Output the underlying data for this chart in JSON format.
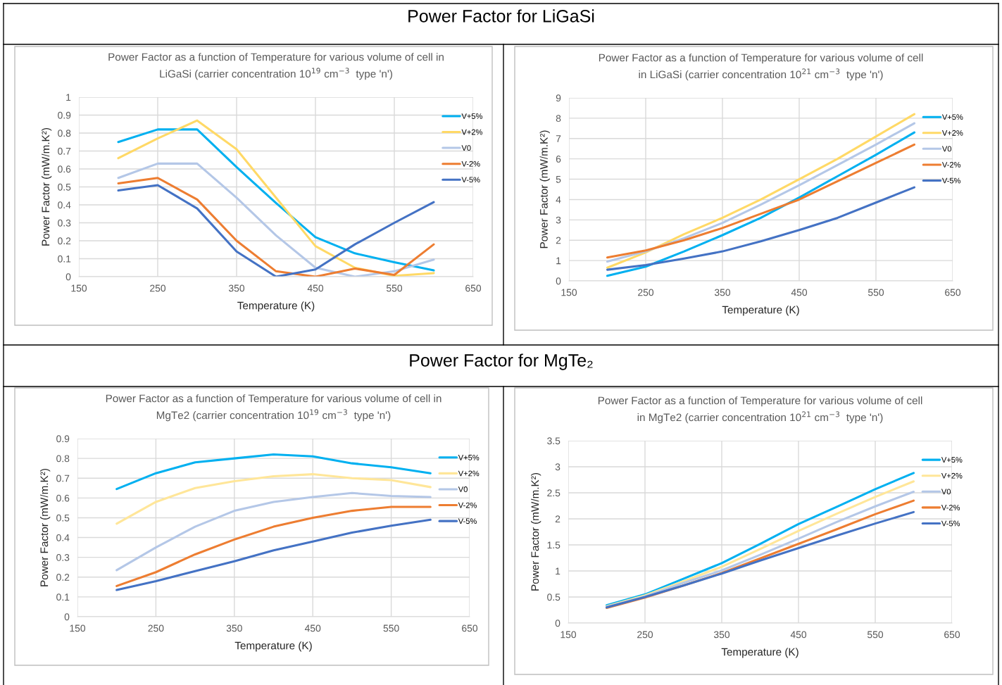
{
  "chart_data": [
    {
      "type": "line",
      "annotations": [
        "Power Factor for LiGaSi"
      ],
      "title": "Power Factor as a function of Temperature for various volume of cell in\nLiGaSi (carrier concentration 10$^{19}$ cm$^{−3}$  type 'n')",
      "xlabel": "Temperature (K)",
      "ylabel": "Power Factor (mW/m.K²)",
      "x": [
        200,
        250,
        300,
        350,
        400,
        450,
        500,
        550,
        600
      ],
      "xlim": [
        150,
        650
      ],
      "xticks": [
        150,
        250,
        350,
        450,
        550,
        650
      ],
      "ylim": [
        0,
        1
      ],
      "yticks": [
        0,
        0.1,
        0.2,
        0.3,
        0.4,
        0.5,
        0.6,
        0.7,
        0.8,
        0.9,
        1
      ],
      "grid": true,
      "legend": "right",
      "marker": "none",
      "line_style": "solid",
      "series": [
        {
          "name": "V+5%",
          "color": "#00b0f0",
          "values": [
            0.75,
            0.82,
            0.82,
            0.61,
            0.41,
            0.22,
            0.13,
            0.08,
            0.035
          ]
        },
        {
          "name": "V+2%",
          "color": "#ffd966",
          "values": [
            0.66,
            0.77,
            0.87,
            0.71,
            0.44,
            0.17,
            0.05,
            0.005,
            0.02
          ]
        },
        {
          "name": "V0",
          "color": "#b4c7e7",
          "values": [
            0.55,
            0.63,
            0.63,
            0.44,
            0.23,
            0.05,
            0.0,
            0.03,
            0.095
          ]
        },
        {
          "name": "V-2%",
          "color": "#ed7d31",
          "values": [
            0.52,
            0.55,
            0.43,
            0.2,
            0.03,
            0.0,
            0.045,
            0.01,
            0.18
          ]
        },
        {
          "name": "V-5%",
          "color": "#4472c4",
          "values": [
            0.48,
            0.51,
            0.38,
            0.14,
            0.0,
            0.04,
            0.18,
            0.3,
            0.415
          ]
        }
      ]
    },
    {
      "type": "line",
      "title": "Power Factor as a function of Temperature for various volume of cell\nin LiGaSi (carrier concentration 10$^{21}$ cm$^{−3}$  type 'n')",
      "xlabel": "Temperature (K)",
      "ylabel": "Power Factor (mW/m.K²)",
      "x": [
        200,
        250,
        300,
        350,
        400,
        450,
        500,
        550,
        600
      ],
      "xlim": [
        150,
        650
      ],
      "xticks": [
        150,
        250,
        350,
        450,
        550,
        650
      ],
      "ylim": [
        0,
        9
      ],
      "yticks": [
        0,
        1,
        2,
        3,
        4,
        5,
        6,
        7,
        8,
        9
      ],
      "grid": true,
      "legend": "right",
      "marker": "none",
      "line_style": "solid",
      "series": [
        {
          "name": "V+5%",
          "color": "#00b0f0",
          "values": [
            0.25,
            0.7,
            1.45,
            2.25,
            3.1,
            4.1,
            5.15,
            6.2,
            7.3
          ]
        },
        {
          "name": "V+2%",
          "color": "#ffd966",
          "values": [
            0.65,
            1.4,
            2.3,
            3.1,
            4.0,
            5.0,
            6.0,
            7.1,
            8.2
          ]
        },
        {
          "name": "V0",
          "color": "#b4c7e7",
          "values": [
            0.95,
            1.45,
            2.1,
            2.85,
            3.75,
            4.7,
            5.7,
            6.7,
            7.75
          ]
        },
        {
          "name": "V-2%",
          "color": "#ed7d31",
          "values": [
            1.15,
            1.5,
            2.0,
            2.6,
            3.3,
            4.0,
            4.9,
            5.8,
            6.7
          ]
        },
        {
          "name": "V-5%",
          "color": "#4472c4",
          "values": [
            0.55,
            0.78,
            1.1,
            1.45,
            1.95,
            2.5,
            3.1,
            3.85,
            4.6
          ]
        }
      ]
    },
    {
      "type": "line",
      "annotations": [
        "Power Factor for MgTe₂"
      ],
      "title": "Power Factor as a function of Temperature for various volume of cell in\nMgTe2 (carrier concentration 10$^{19}$ cm$^{−3}$  type 'n')",
      "xlabel": "Temperature (K)",
      "ylabel": "Power Factor (mW/m.K²)",
      "x": [
        200,
        250,
        300,
        350,
        400,
        450,
        500,
        550,
        600
      ],
      "xlim": [
        150,
        650
      ],
      "xticks": [
        150,
        250,
        350,
        450,
        550,
        650
      ],
      "ylim": [
        0,
        0.9
      ],
      "yticks": [
        0,
        0.1,
        0.2,
        0.3,
        0.4,
        0.5,
        0.6,
        0.7,
        0.8,
        0.9
      ],
      "grid": true,
      "legend": "right",
      "marker": "none",
      "line_style": "solid",
      "series": [
        {
          "name": "V+5%",
          "color": "#00b0f0",
          "values": [
            0.645,
            0.725,
            0.78,
            0.8,
            0.82,
            0.81,
            0.775,
            0.755,
            0.725
          ]
        },
        {
          "name": "V+2%",
          "color": "#ffe699",
          "values": [
            0.47,
            0.58,
            0.65,
            0.685,
            0.71,
            0.72,
            0.7,
            0.69,
            0.655
          ]
        },
        {
          "name": "V0",
          "color": "#b4c7e7",
          "values": [
            0.235,
            0.35,
            0.455,
            0.535,
            0.58,
            0.605,
            0.625,
            0.61,
            0.605
          ]
        },
        {
          "name": "V-2%",
          "color": "#ed7d31",
          "values": [
            0.155,
            0.225,
            0.315,
            0.39,
            0.455,
            0.5,
            0.535,
            0.555,
            0.555
          ]
        },
        {
          "name": "V-5%",
          "color": "#4472c4",
          "values": [
            0.135,
            0.18,
            0.23,
            0.28,
            0.335,
            0.38,
            0.425,
            0.46,
            0.49
          ]
        }
      ]
    },
    {
      "type": "line",
      "title": "Power Factor as a function of Temperature for various volume of cell\nin MgTe2 (carrier concentration 10$^{21}$ cm$^{−3}$  type 'n')",
      "xlabel": "Temperature (K)",
      "ylabel": "Power Factor (mW/m.K²)",
      "x": [
        200,
        250,
        300,
        350,
        400,
        450,
        500,
        550,
        600
      ],
      "xlim": [
        150,
        650
      ],
      "xticks": [
        150,
        250,
        350,
        450,
        550,
        650
      ],
      "ylim": [
        0,
        3.5
      ],
      "yticks": [
        0,
        0.5,
        1,
        1.5,
        2,
        2.5,
        3,
        3.5
      ],
      "grid": true,
      "legend": "right",
      "marker": "none",
      "line_style": "solid",
      "series": [
        {
          "name": "V+5%",
          "color": "#00b0f0",
          "values": [
            0.34,
            0.55,
            0.85,
            1.15,
            1.52,
            1.9,
            2.23,
            2.57,
            2.88
          ]
        },
        {
          "name": "V+2%",
          "color": "#ffe699",
          "values": [
            0.32,
            0.53,
            0.8,
            1.08,
            1.42,
            1.77,
            2.1,
            2.42,
            2.72
          ]
        },
        {
          "name": "V0",
          "color": "#b4c7e7",
          "values": [
            0.31,
            0.51,
            0.77,
            1.01,
            1.31,
            1.62,
            1.94,
            2.24,
            2.52
          ]
        },
        {
          "name": "V-2%",
          "color": "#ed7d31",
          "values": [
            0.29,
            0.49,
            0.72,
            0.96,
            1.24,
            1.52,
            1.8,
            2.09,
            2.35
          ]
        },
        {
          "name": "V-5%",
          "color": "#4472c4",
          "values": [
            0.3,
            0.5,
            0.72,
            0.95,
            1.2,
            1.44,
            1.68,
            1.91,
            2.13
          ]
        }
      ]
    }
  ]
}
